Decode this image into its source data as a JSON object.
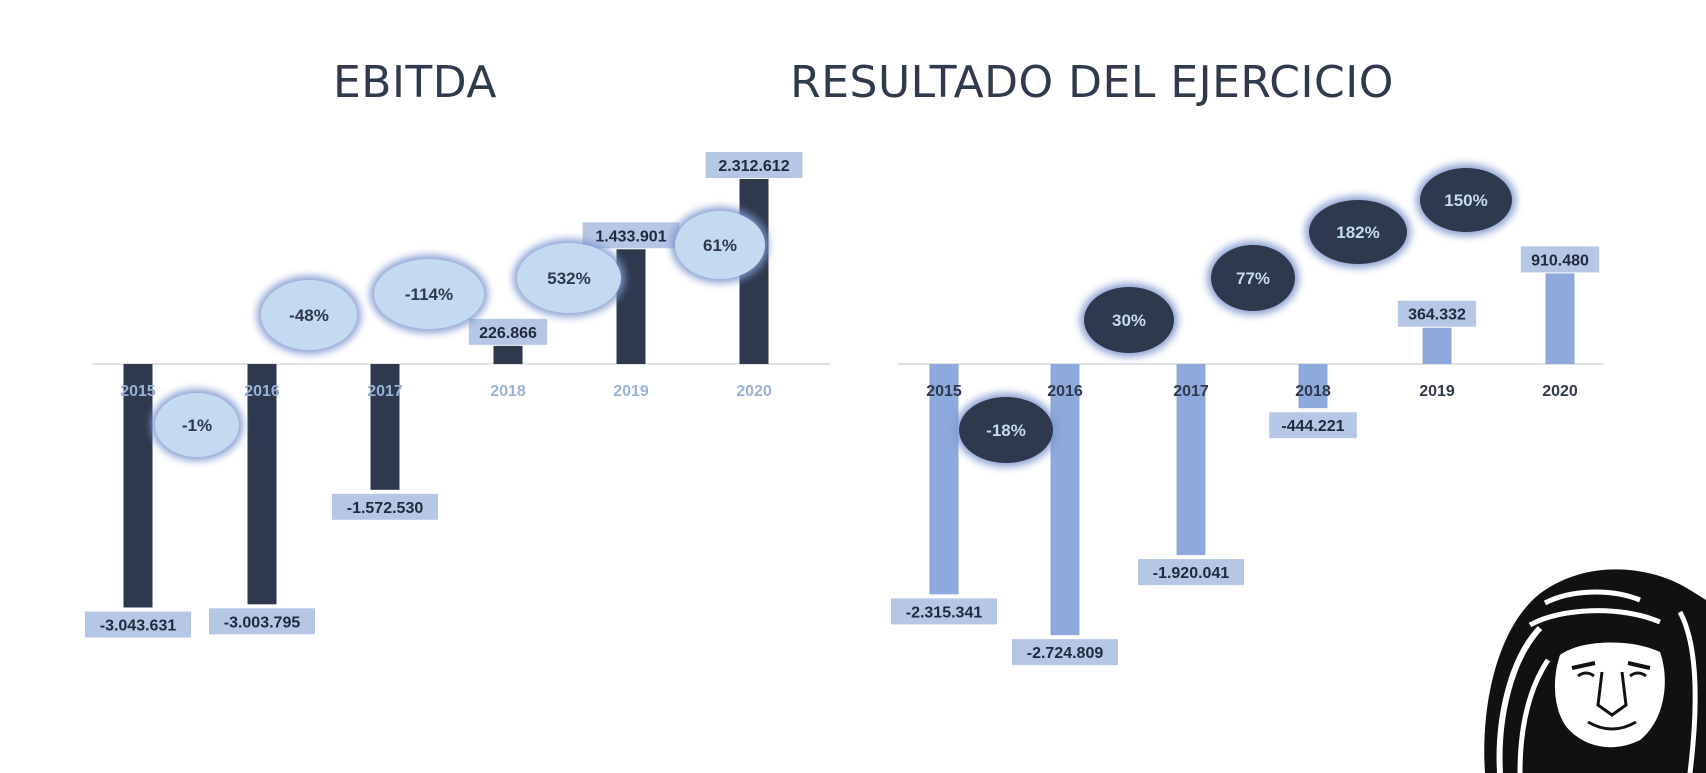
{
  "colors": {
    "dark": "#2e394d",
    "light_bar": "#8ea9dc",
    "label_bg": "#b6c7e6",
    "bubble_light": "#c3daf0",
    "bubble_glow": "#7f97cf",
    "tick_light": "#9bb2d8",
    "title": "#2f3a4c"
  },
  "chart_data": [
    {
      "type": "bar",
      "title": "EBITDA",
      "categories": [
        "2015",
        "2016",
        "2017",
        "2018",
        "2019",
        "2020"
      ],
      "values": [
        -3043631,
        -3003795,
        -1572530,
        226866,
        1433901,
        2312612
      ],
      "value_labels": [
        "-3.043.631",
        "-3.003.795",
        "-1.572.530",
        "226.866",
        "1.433.901",
        "2.312.612"
      ],
      "growth_labels": [
        "-1%",
        "-48%",
        "-114%",
        "532%",
        "61%"
      ],
      "bar_color": "#2e394d",
      "bubble_style": "light",
      "tick_color": "#9bb2d8"
    },
    {
      "type": "bar",
      "title": "RESULTADO DEL EJERCICIO",
      "categories": [
        "2015",
        "2016",
        "2017",
        "2018",
        "2019",
        "2020"
      ],
      "values": [
        -2315341,
        -2724809,
        -1920041,
        -444221,
        364332,
        910480
      ],
      "value_labels": [
        "-2.315.341",
        "-2.724.809",
        "-1.920.041",
        "-444.221",
        "364.332",
        "910.480"
      ],
      "growth_labels": [
        "-18%",
        "30%",
        "77%",
        "182%",
        "150%"
      ],
      "bar_color": "#8ea9dc",
      "bubble_style": "dark",
      "tick_color": "#2e394d"
    }
  ],
  "logo": {
    "icon": "lion-head-icon"
  }
}
